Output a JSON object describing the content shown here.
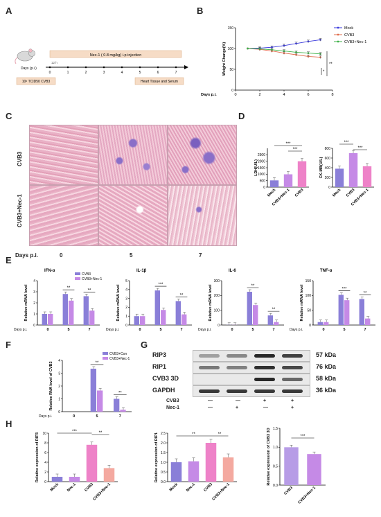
{
  "panels": {
    "A": {
      "label": "A",
      "treatment": "Nec-1 ( 0.8 mg/kg) i.p injection",
      "days_label": "Days (p.i.)",
      "timeline_ticks": [
        "0",
        "1",
        "2",
        "3",
        "4",
        "5",
        "6",
        "7"
      ],
      "offset_label": "12 h",
      "infection": "10⁶ TCID50 CVB3",
      "harvest": "Heart Tissue and Serum"
    },
    "B": {
      "label": "B"
    },
    "C": {
      "label": "C",
      "row_labels": [
        "CVB3",
        "CVB3+Nec-1"
      ],
      "days_label": "Days p.i.",
      "day_values": [
        "0",
        "5",
        "7"
      ]
    },
    "D": {
      "label": "D"
    },
    "E": {
      "label": "E"
    },
    "F": {
      "label": "F"
    },
    "G": {
      "label": "G",
      "bands": [
        {
          "name": "RIP3",
          "kda": "57 kDa"
        },
        {
          "name": "RIP1",
          "kda": "76 kDa"
        },
        {
          "name": "CVB3 3D",
          "kda": "58 kDa"
        },
        {
          "name": "GAPDH",
          "kda": "36 kDa"
        }
      ],
      "lane_rows": [
        {
          "name": "CVB3",
          "signs": [
            "—",
            "—",
            "+",
            "+"
          ]
        },
        {
          "name": "Nec-1",
          "signs": [
            "—",
            "+",
            "—",
            "+"
          ]
        }
      ]
    },
    "H": {
      "label": "H"
    }
  },
  "colors": {
    "mock": "#3a3adc",
    "cvb3": "#e06c4c",
    "cvb3_nec1": "#3fb24a",
    "purple": "#8a7fd8",
    "violet": "#c58ae6",
    "pink": "#ee82c8",
    "light_purple": "#c9a7e8",
    "salmon": "#f4a9a0",
    "lavender": "#b79ce6",
    "grid": "#000000"
  },
  "chart_data": [
    {
      "id": "B",
      "type": "line",
      "ylabel": "Weight Change(%)",
      "xlabel": "Days p.i.",
      "xlim": [
        0,
        8
      ],
      "ylim": [
        0,
        150
      ],
      "x_ticks": [
        0,
        2,
        4,
        6,
        8
      ],
      "y_ticks": [
        0,
        50,
        100,
        150
      ],
      "legend": "top-right",
      "series": [
        {
          "name": "Mock",
          "x": [
            1,
            2,
            3,
            4,
            5,
            6,
            7
          ],
          "values": [
            100,
            101,
            103,
            107,
            112,
            117,
            121
          ],
          "color": "#3a3adc"
        },
        {
          "name": "CVB3",
          "x": [
            1,
            2,
            3,
            4,
            5,
            6,
            7
          ],
          "values": [
            100,
            98,
            94,
            89,
            85,
            81,
            79
          ],
          "color": "#e06c4c"
        },
        {
          "name": "CVB3+Nec-1",
          "x": [
            1,
            2,
            3,
            4,
            5,
            6,
            7
          ],
          "values": [
            100,
            99,
            97,
            94,
            91,
            89,
            87
          ],
          "color": "#3fb24a"
        }
      ],
      "sig": [
        "**",
        "*"
      ]
    },
    {
      "id": "D1",
      "type": "bar",
      "ylabel": "LDH(U/L)",
      "ylim": [
        0,
        3000
      ],
      "y_ticks": [
        0,
        500,
        1000,
        1500,
        2000,
        2500
      ],
      "categories": [
        "Mock",
        "CVB3+Nec-1",
        "CVB3"
      ],
      "values": [
        520,
        990,
        2000
      ],
      "colors": [
        "#8a7fd8",
        "#c58ae6",
        "#ee82c8"
      ],
      "sig": [
        "***",
        "***"
      ]
    },
    {
      "id": "D2",
      "type": "bar",
      "ylabel": "CK-MB(U/L)",
      "ylim": [
        0,
        800
      ],
      "y_ticks": [
        0,
        200,
        400,
        600,
        800
      ],
      "categories": [
        "Mock",
        "CVB3",
        "CVB3+Nec-1"
      ],
      "values": [
        380,
        700,
        430
      ],
      "colors": [
        "#8a7fd8",
        "#c58ae6",
        "#ee82c8"
      ],
      "sig": [
        "***",
        "***"
      ]
    },
    {
      "id": "E1",
      "type": "bar",
      "title": "IFN-α",
      "ylabel": "Relative mRNA level",
      "xlabel": "Days p.i.",
      "categories": [
        "0",
        "5",
        "7"
      ],
      "ylim": [
        0,
        4
      ],
      "y_ticks": [
        0,
        1,
        2,
        3,
        4
      ],
      "legend": "top-right",
      "series": [
        {
          "name": "CVB3",
          "values": [
            1.0,
            2.8,
            2.6
          ],
          "color": "#8a7fd8"
        },
        {
          "name": "CVB3+Nec-1",
          "values": [
            1.0,
            2.2,
            1.3
          ],
          "color": "#c58ae6"
        }
      ],
      "sig": [
        "**",
        "**"
      ]
    },
    {
      "id": "E2",
      "type": "bar",
      "title": "IL-1β",
      "ylabel": "Relative mRNA level",
      "xlabel": "Days p.i.",
      "categories": [
        "0",
        "5",
        "7"
      ],
      "ylim": [
        0,
        5
      ],
      "y_ticks": [
        0,
        1,
        2,
        3,
        4,
        5
      ],
      "series": [
        {
          "name": "CVB3",
          "values": [
            1.0,
            3.9,
            2.7
          ],
          "color": "#8a7fd8"
        },
        {
          "name": "CVB3+Nec-1",
          "values": [
            1.0,
            1.7,
            1.2
          ],
          "color": "#c58ae6"
        }
      ],
      "sig": [
        "***",
        "**"
      ]
    },
    {
      "id": "E3",
      "type": "bar",
      "title": "IL-6",
      "ylabel": "Relative mRNA level",
      "xlabel": "Days p.i.",
      "categories": [
        "0",
        "5",
        "7"
      ],
      "ylim": [
        0,
        300
      ],
      "y_ticks": [
        0,
        100,
        200,
        300
      ],
      "series": [
        {
          "name": "CVB3",
          "values": [
            1,
            225,
            65
          ],
          "color": "#8a7fd8"
        },
        {
          "name": "CVB3+Nec-1",
          "values": [
            1,
            135,
            20
          ],
          "color": "#c58ae6"
        }
      ],
      "sig": [
        "**",
        "**"
      ]
    },
    {
      "id": "E4",
      "type": "bar",
      "title": "TNF-α",
      "ylabel": "Relative mRNA level",
      "xlabel": "Days p.i.",
      "categories": [
        "0",
        "5",
        "7"
      ],
      "ylim": [
        0,
        150
      ],
      "y_ticks": [
        0,
        50,
        100,
        150
      ],
      "series": [
        {
          "name": "CVB3",
          "values": [
            10,
            102,
            88
          ],
          "color": "#8a7fd8"
        },
        {
          "name": "CVB3+Nec-1",
          "values": [
            10,
            84,
            22
          ],
          "color": "#c58ae6"
        }
      ],
      "sig": [
        "***",
        "**"
      ]
    },
    {
      "id": "F",
      "type": "bar",
      "ylabel": "Relative RNA level of CVB3",
      "xlabel": "Days p.i.",
      "categories": [
        "0",
        "5",
        "7"
      ],
      "ylim": [
        0,
        4
      ],
      "y_ticks": [
        0,
        1,
        2,
        3,
        4
      ],
      "legend": "top-right",
      "series": [
        {
          "name": "CVB3+Con",
          "values": [
            0,
            3.35,
            1.0
          ],
          "color": "#8a7fd8"
        },
        {
          "name": "CVB3+Nec-1",
          "values": [
            0,
            1.65,
            0.15
          ],
          "color": "#c58ae6"
        }
      ],
      "sig": [
        "**",
        "**"
      ]
    },
    {
      "id": "H1",
      "type": "bar",
      "ylabel": "Relative expression of RIP3",
      "categories": [
        "Mock",
        "Nec-1",
        "CVB3",
        "CVB3+Nec-1"
      ],
      "values": [
        1.0,
        1.0,
        7.6,
        2.8
      ],
      "ylim": [
        0,
        10
      ],
      "y_ticks": [
        0,
        2,
        4,
        6,
        8,
        10
      ],
      "colors": [
        "#8a7fd8",
        "#c58ae6",
        "#ee82c8",
        "#f4a9a0"
      ],
      "sig": [
        "***",
        "**"
      ]
    },
    {
      "id": "H2",
      "type": "bar",
      "ylabel": "Relative expression of RIP1",
      "categories": [
        "Mock",
        "Nec-1",
        "CVB3",
        "CVB3+Nec-1"
      ],
      "values": [
        1.0,
        1.05,
        2.0,
        1.25
      ],
      "ylim": [
        0,
        2.5
      ],
      "y_ticks": [
        0,
        0.5,
        1.0,
        1.5,
        2.0,
        2.5
      ],
      "colors": [
        "#8a7fd8",
        "#c58ae6",
        "#ee82c8",
        "#f4a9a0"
      ],
      "sig": [
        "**",
        "**"
      ]
    },
    {
      "id": "H3",
      "type": "bar",
      "ylabel": "Relative expression of CVB3 3D",
      "categories": [
        "CVB3",
        "CVB3+Nec-1"
      ],
      "values": [
        1.0,
        0.82
      ],
      "ylim": [
        0,
        1.5
      ],
      "y_ticks": [
        0,
        0.5,
        1.0,
        1.5
      ],
      "colors": [
        "#b79ce6",
        "#c58ae6"
      ],
      "sig": [
        "***"
      ]
    }
  ]
}
